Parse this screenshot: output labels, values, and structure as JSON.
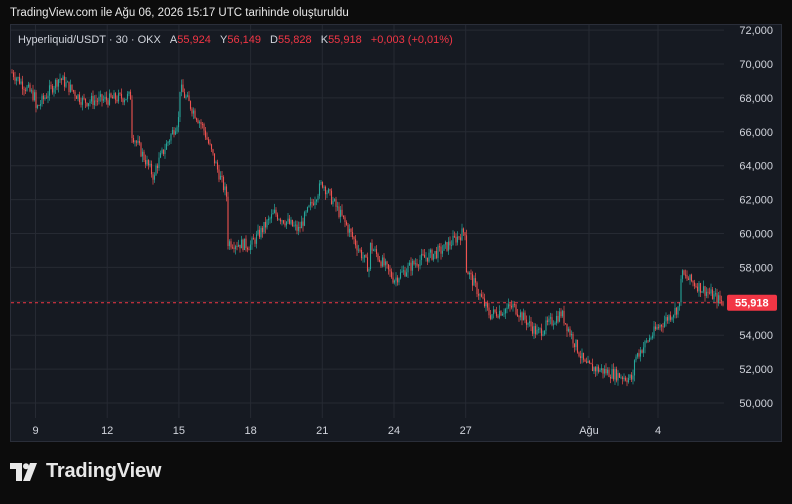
{
  "caption": "TradingView.com ile Ağu 06, 2026 15:17 UTC tarihinde oluşturuldu",
  "legend": {
    "symbol": "Hyperliquid/USDT · 30 · OKX",
    "open_label": "A",
    "open": "55,924",
    "high_label": "Y",
    "high": "56,149",
    "low_label": "D",
    "low": "55,828",
    "close_label": "K",
    "close": "55,918",
    "change": "+0,003 (+0,01%)"
  },
  "last_price_label": "55,918",
  "brand": {
    "name": "TradingView",
    "logo": "tradingview-logo-icon"
  },
  "colors": {
    "up": "#26a69a",
    "down": "#ef5350",
    "price_line": "#f23645",
    "grid": "#262a33"
  },
  "chart_data": {
    "type": "candlestick",
    "title": "Hyperliquid/USDT · 30 · OKX",
    "yticks": [
      "72,000",
      "70,000",
      "68,000",
      "66,000",
      "64,000",
      "62,000",
      "60,000",
      "58,000",
      "56,000",
      "54,000",
      "52,000",
      "50,000"
    ],
    "xticks": [
      "9",
      "12",
      "15",
      "18",
      "21",
      "24",
      "27",
      "Ağu",
      "4"
    ],
    "ylim": [
      49200,
      72100
    ],
    "grid": true,
    "last_price": 55.918,
    "path": [
      {
        "day": "Jul 8",
        "price": 69.5
      },
      {
        "day": "Jul 9",
        "price": 68.0
      },
      {
        "day": "Jul 9",
        "price": 67.3
      },
      {
        "day": "Jul 10",
        "price": 69.2
      },
      {
        "day": "Jul 11",
        "price": 67.8
      },
      {
        "day": "Jul 12",
        "price": 67.9
      },
      {
        "day": "Jul 13",
        "price": 68.1
      },
      {
        "day": "Jul 13",
        "price": 66.0
      },
      {
        "day": "Jul 14",
        "price": 63.2
      },
      {
        "day": "Jul 14",
        "price": 63.8
      },
      {
        "day": "Jul 15",
        "price": 66.8
      },
      {
        "day": "Jul 15",
        "price": 68.7
      },
      {
        "day": "Jul 16",
        "price": 66.3
      },
      {
        "day": "Jul 17",
        "price": 62.2
      },
      {
        "day": "Jul 17",
        "price": 59.5
      },
      {
        "day": "Jul 18",
        "price": 59.3
      },
      {
        "day": "Jul 19",
        "price": 61.2
      },
      {
        "day": "Jul 20",
        "price": 60.2
      },
      {
        "day": "Jul 21",
        "price": 63.0
      },
      {
        "day": "Jul 22",
        "price": 60.5
      },
      {
        "day": "Jul 23",
        "price": 57.8
      },
      {
        "day": "Jul 23",
        "price": 59.3
      },
      {
        "day": "Jul 24",
        "price": 57.3
      },
      {
        "day": "Jul 25",
        "price": 58.4
      },
      {
        "day": "Jul 26",
        "price": 59.0
      },
      {
        "day": "Jul 27",
        "price": 60.2
      },
      {
        "day": "Jul 27",
        "price": 58.0
      },
      {
        "day": "Jul 28",
        "price": 55.2
      },
      {
        "day": "Jul 29",
        "price": 55.7
      },
      {
        "day": "Jul 30",
        "price": 54.1
      },
      {
        "day": "Jul 31",
        "price": 55.3
      },
      {
        "day": "Aug 1",
        "price": 52.2
      },
      {
        "day": "Aug 2",
        "price": 51.8
      },
      {
        "day": "Aug 3",
        "price": 51.4
      },
      {
        "day": "Aug 3",
        "price": 52.5
      },
      {
        "day": "Aug 4",
        "price": 54.4
      },
      {
        "day": "Aug 5",
        "price": 55.8
      },
      {
        "day": "Aug 5",
        "price": 57.6
      },
      {
        "day": "Aug 6",
        "price": 55.918
      }
    ]
  }
}
